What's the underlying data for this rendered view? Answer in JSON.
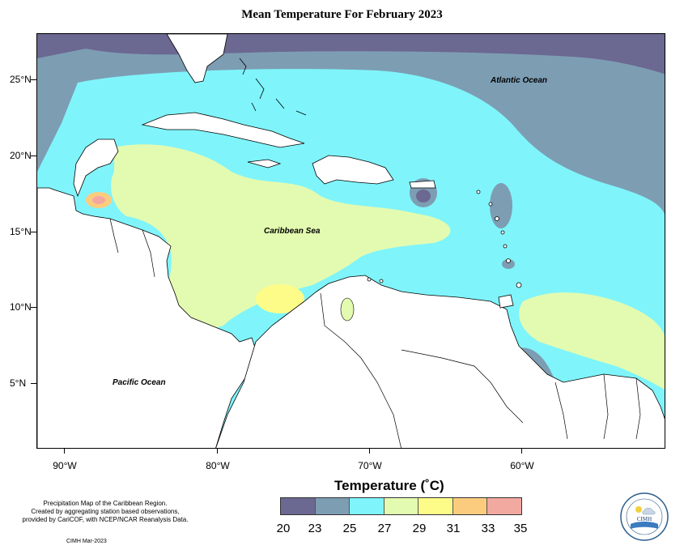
{
  "title": "Mean Temperature For February 2023",
  "y_axis_labels": [
    "25°N",
    "20°N",
    "15°N",
    "10°N",
    "5°N"
  ],
  "x_axis_labels": [
    "90°W",
    "80°W",
    "70°W",
    "60°W"
  ],
  "ocean_labels": {
    "atlantic": "Atlantic Ocean",
    "caribbean": "Caribbean Sea",
    "pacific": "Pacific Ocean"
  },
  "legend": {
    "title": "Temperature (˚C)",
    "colors": [
      "#6b6891",
      "#7d9db3",
      "#7ff4fb",
      "#e3fbb0",
      "#fdfc88",
      "#fccc7e",
      "#f2a9a0"
    ],
    "labels": [
      "20",
      "23",
      "25",
      "27",
      "29",
      "31",
      "33",
      "35"
    ]
  },
  "credit": {
    "line1": "Precipitation Map of the Caribbean Region.",
    "line2": "Created by aggregating station based observations,",
    "line3": "provided by CariCOF, with NCEP/NCAR Reanalysis Data.",
    "line4": "CIMH Mar-2023"
  },
  "logo": {
    "text": "CIMH"
  }
}
